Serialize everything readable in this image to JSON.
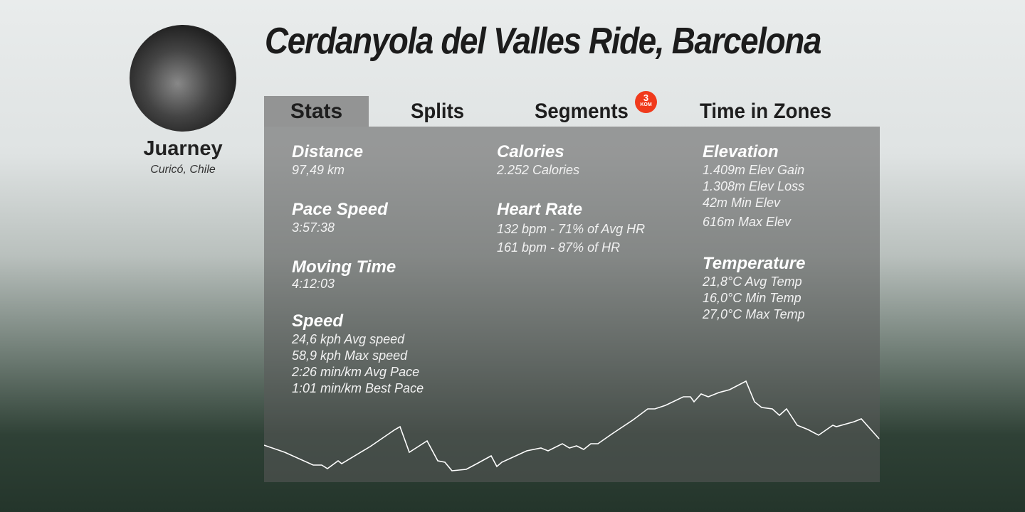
{
  "profile": {
    "name": "Juarney",
    "location": "Curicó, Chile"
  },
  "title": "Cerdanyola del Valles Ride, Barcelona",
  "tabs": [
    {
      "label": "Stats",
      "active": true
    },
    {
      "label": "Splits"
    },
    {
      "label": "Segments",
      "badge": {
        "count": "3",
        "label": "KOM"
      }
    },
    {
      "label": "Time in Zones"
    }
  ],
  "stats": {
    "distance": {
      "label": "Distance",
      "values": [
        "97,49 km"
      ]
    },
    "pace": {
      "label": "Pace  Speed",
      "values": [
        "3:57:38"
      ]
    },
    "moving": {
      "label": "Moving Time",
      "values": [
        "4:12:03"
      ]
    },
    "speed": {
      "label": "Speed",
      "values": [
        "24,6 kph Avg speed",
        "58,9 kph Max speed",
        "2:26 min/km Avg Pace",
        "1:01 min/km Best Pace"
      ]
    },
    "calories": {
      "label": "Calories",
      "values": [
        "2.252 Calories"
      ]
    },
    "heart": {
      "label": "Heart Rate",
      "values": [
        "132 bpm - 71% of Avg HR",
        "161 bpm - 87% of HR"
      ]
    },
    "elevation": {
      "label": "Elevation",
      "values": [
        "1.409m Elev Gain",
        "1.308m Elev Loss",
        "42m Min Elev",
        "616m Max Elev"
      ]
    },
    "temperature": {
      "label": "Temperature",
      "values": [
        "21,8°C Avg Temp",
        "16,0°C Min Temp",
        "27,0°C Max Temp"
      ]
    }
  },
  "colors": {
    "badge": "#f03a1c",
    "panel": "#5a5a5a"
  }
}
